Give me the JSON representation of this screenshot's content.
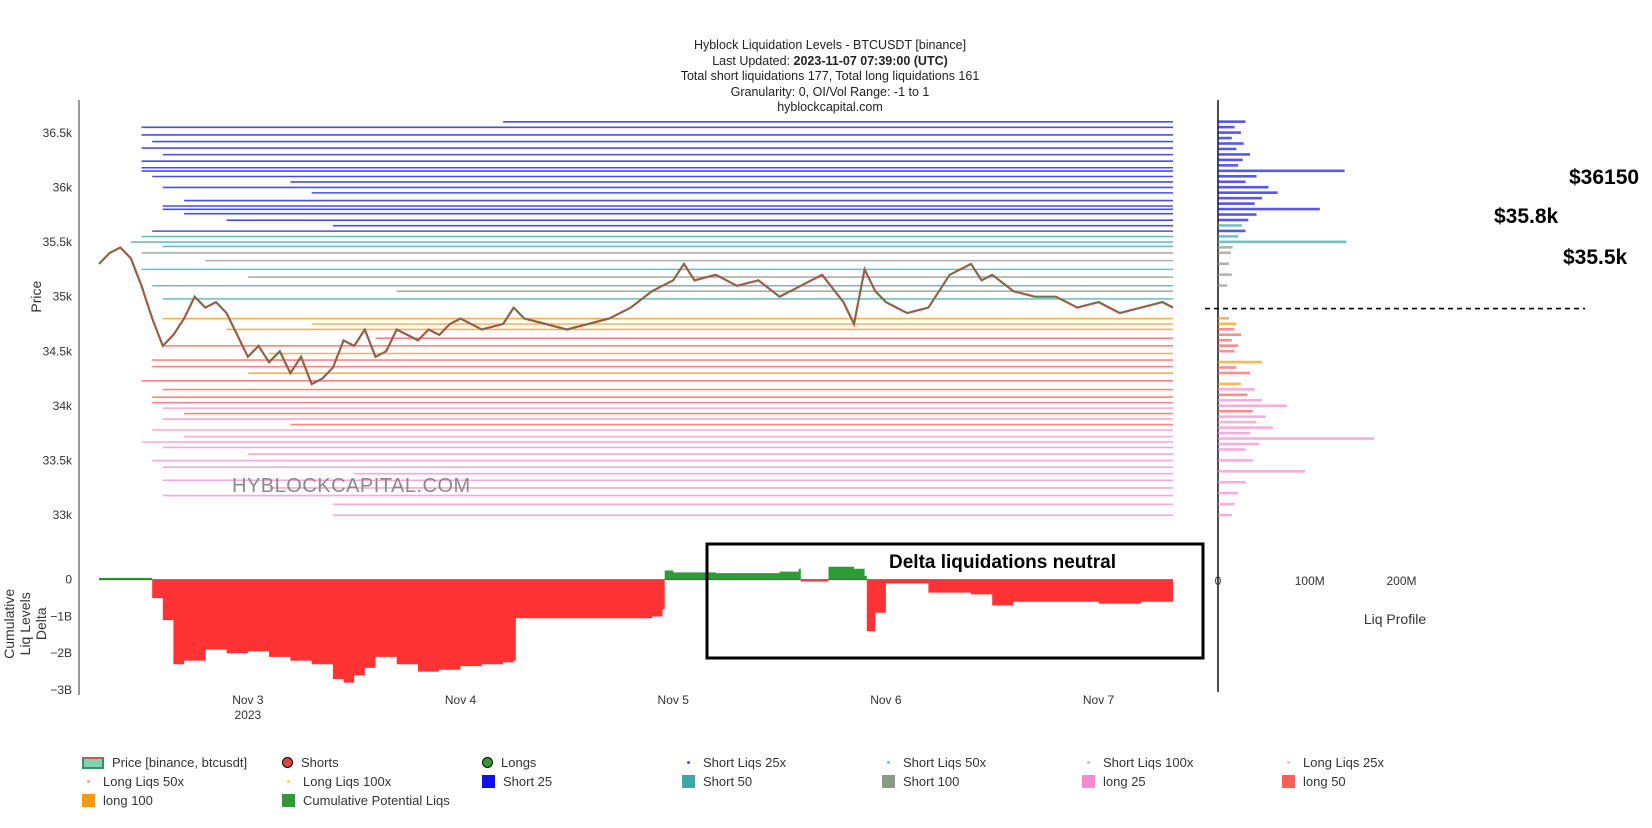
{
  "title": {
    "line1": "Hyblock Liquidation Levels - BTCUSDT [binance]",
    "line2_prefix": "Last Updated: ",
    "line2_value": "2023-11-07 07:39:00 (UTC)",
    "line3": "Total short liquidations 177, Total long liquidations 161",
    "line4": "Granularity: 0, OI/Vol Range: -1 to 1",
    "line5": "hyblockcapital.com"
  },
  "watermark": "HYBLOCKCAPITAL.COM",
  "annotations": {
    "level1": "$36150",
    "level2": "$35.8k",
    "level3": "$35.5k",
    "delta_note": "Delta liquidations neutral"
  },
  "colors": {
    "short25": "#1010e8",
    "short50": "#3aa8a8",
    "short100": "#8a9a84",
    "long25": "#f58ad0",
    "long50": "#ff5c5c",
    "long100": "#f39a10",
    "cum_positive": "#2e9c33",
    "cum_negative": "#ff3333",
    "price_up": "#2e8b57",
    "price_down": "#e0443e"
  },
  "chart_data": [
    {
      "type": "line",
      "name_series": "Price [binance, btcusdt]",
      "ylabel": "Price",
      "ylim": [
        32700,
        36800
      ],
      "yticks": [
        33000,
        33500,
        34000,
        34500,
        35000,
        35500,
        36000,
        36500
      ],
      "ytick_labels": [
        "33k",
        "33.5k",
        "34k",
        "34.5k",
        "35k",
        "35.5k",
        "36k",
        "36.5k"
      ],
      "xlim": [
        2.3,
        7.35
      ],
      "x_ticks": [
        3,
        4,
        5,
        6,
        7
      ],
      "x_tick_labels": [
        "Nov 3",
        "Nov 4",
        "Nov 5",
        "Nov 6",
        "Nov 7"
      ],
      "x_tick_sublabel": "2023",
      "price": {
        "x": [
          2.3,
          2.35,
          2.4,
          2.45,
          2.5,
          2.55,
          2.6,
          2.65,
          2.7,
          2.75,
          2.8,
          2.85,
          2.9,
          2.95,
          3.0,
          3.05,
          3.1,
          3.15,
          3.2,
          3.25,
          3.3,
          3.35,
          3.4,
          3.45,
          3.5,
          3.55,
          3.6,
          3.65,
          3.7,
          3.75,
          3.8,
          3.85,
          3.9,
          3.95,
          4.0,
          4.1,
          4.2,
          4.25,
          4.3,
          4.4,
          4.5,
          4.6,
          4.7,
          4.8,
          4.9,
          5.0,
          5.05,
          5.1,
          5.2,
          5.3,
          5.4,
          5.5,
          5.6,
          5.7,
          5.8,
          5.85,
          5.9,
          5.95,
          6.0,
          6.05,
          6.1,
          6.2,
          6.3,
          6.4,
          6.45,
          6.5,
          6.6,
          6.7,
          6.8,
          6.9,
          7.0,
          7.1,
          7.2,
          7.3,
          7.35
        ],
        "y": [
          35300,
          35400,
          35450,
          35350,
          35100,
          34800,
          34550,
          34650,
          34800,
          35000,
          34900,
          34950,
          34850,
          34650,
          34450,
          34550,
          34400,
          34500,
          34300,
          34450,
          34200,
          34250,
          34350,
          34600,
          34550,
          34700,
          34450,
          34500,
          34700,
          34650,
          34600,
          34700,
          34650,
          34750,
          34800,
          34700,
          34750,
          34900,
          34800,
          34750,
          34700,
          34750,
          34800,
          34900,
          35050,
          35150,
          35300,
          35150,
          35200,
          35100,
          35150,
          35000,
          35100,
          35200,
          34950,
          34750,
          35250,
          35050,
          34950,
          34900,
          34850,
          34900,
          35200,
          35300,
          35150,
          35200,
          35050,
          35000,
          35000,
          34900,
          34950,
          34850,
          34900,
          34950,
          34900
        ]
      },
      "liquidation_levels": {
        "short": [
          {
            "price": 36600,
            "start": 4.2,
            "lev": 25
          },
          {
            "price": 36550,
            "start": 2.5,
            "lev": 25
          },
          {
            "price": 36480,
            "start": 2.5,
            "lev": 25
          },
          {
            "price": 36420,
            "start": 2.55,
            "lev": 25
          },
          {
            "price": 36360,
            "start": 2.5,
            "lev": 25
          },
          {
            "price": 36300,
            "start": 2.6,
            "lev": 25
          },
          {
            "price": 36240,
            "start": 2.5,
            "lev": 25
          },
          {
            "price": 36180,
            "start": 2.5,
            "lev": 25
          },
          {
            "price": 36150,
            "start": 2.5,
            "lev": 25
          },
          {
            "price": 36100,
            "start": 2.55,
            "lev": 25
          },
          {
            "price": 36050,
            "start": 3.2,
            "lev": 25
          },
          {
            "price": 36000,
            "start": 2.6,
            "lev": 25
          },
          {
            "price": 35950,
            "start": 3.3,
            "lev": 25
          },
          {
            "price": 35880,
            "start": 2.7,
            "lev": 25
          },
          {
            "price": 35830,
            "start": 2.6,
            "lev": 25
          },
          {
            "price": 35800,
            "start": 2.6,
            "lev": 25
          },
          {
            "price": 35760,
            "start": 2.7,
            "lev": 25
          },
          {
            "price": 35700,
            "start": 2.9,
            "lev": 25
          },
          {
            "price": 35650,
            "start": 3.4,
            "lev": 25
          },
          {
            "price": 35600,
            "start": 2.55,
            "lev": 25
          },
          {
            "price": 35550,
            "start": 2.5,
            "lev": 50
          },
          {
            "price": 35500,
            "start": 2.45,
            "lev": 50
          },
          {
            "price": 35460,
            "start": 2.6,
            "lev": 50
          },
          {
            "price": 35400,
            "start": 2.5,
            "lev": 100
          },
          {
            "price": 35330,
            "start": 2.8,
            "lev": 100
          },
          {
            "price": 35250,
            "start": 2.5,
            "lev": 50
          },
          {
            "price": 35180,
            "start": 3.0,
            "lev": 100
          },
          {
            "price": 35100,
            "start": 2.55,
            "lev": 50
          },
          {
            "price": 35050,
            "start": 3.7,
            "lev": 100
          },
          {
            "price": 34980,
            "start": 2.6,
            "lev": 50
          }
        ],
        "long": [
          {
            "price": 34800,
            "start": 2.6,
            "lev": 100
          },
          {
            "price": 34750,
            "start": 3.3,
            "lev": 100
          },
          {
            "price": 34700,
            "start": 2.9,
            "lev": 100
          },
          {
            "price": 34620,
            "start": 3.6,
            "lev": 50
          },
          {
            "price": 34550,
            "start": 2.6,
            "lev": 50
          },
          {
            "price": 34480,
            "start": 3.1,
            "lev": 100
          },
          {
            "price": 34420,
            "start": 2.55,
            "lev": 50
          },
          {
            "price": 34360,
            "start": 2.55,
            "lev": 50
          },
          {
            "price": 34300,
            "start": 3.0,
            "lev": 100
          },
          {
            "price": 34230,
            "start": 2.5,
            "lev": 50
          },
          {
            "price": 34150,
            "start": 2.6,
            "lev": 50
          },
          {
            "price": 34080,
            "start": 2.55,
            "lev": 50
          },
          {
            "price": 34030,
            "start": 2.55,
            "lev": 50
          },
          {
            "price": 33980,
            "start": 2.6,
            "lev": 25
          },
          {
            "price": 33930,
            "start": 2.7,
            "lev": 50
          },
          {
            "price": 33880,
            "start": 2.6,
            "lev": 25
          },
          {
            "price": 33830,
            "start": 3.2,
            "lev": 50
          },
          {
            "price": 33780,
            "start": 2.55,
            "lev": 25
          },
          {
            "price": 33720,
            "start": 2.7,
            "lev": 25
          },
          {
            "price": 33670,
            "start": 2.5,
            "lev": 25
          },
          {
            "price": 33620,
            "start": 2.6,
            "lev": 25
          },
          {
            "price": 33560,
            "start": 3.0,
            "lev": 25
          },
          {
            "price": 33500,
            "start": 2.55,
            "lev": 25
          },
          {
            "price": 33440,
            "start": 2.6,
            "lev": 25
          },
          {
            "price": 33380,
            "start": 3.5,
            "lev": 25
          },
          {
            "price": 33320,
            "start": 2.6,
            "lev": 25
          },
          {
            "price": 33250,
            "start": 3.1,
            "lev": 25
          },
          {
            "price": 33180,
            "start": 2.6,
            "lev": 25
          },
          {
            "price": 33100,
            "start": 3.4,
            "lev": 25
          },
          {
            "price": 33000,
            "start": 3.4,
            "lev": 25
          }
        ]
      }
    },
    {
      "type": "area",
      "series_name": "Cumulative Potential Liqs",
      "ylabel": "Cumulative Liq Levels Delta",
      "ylim": [
        -3,
        0.4
      ],
      "yticks": [
        0,
        -1,
        -2,
        -3
      ],
      "ytick_labels": [
        "0",
        "−1B",
        "−2B",
        "−3B"
      ],
      "unit": "B",
      "x": [
        2.3,
        2.5,
        2.55,
        2.6,
        2.65,
        2.7,
        2.8,
        2.9,
        3.0,
        3.1,
        3.2,
        3.3,
        3.4,
        3.45,
        3.5,
        3.55,
        3.6,
        3.7,
        3.8,
        3.9,
        4.0,
        4.1,
        4.2,
        4.25,
        4.26,
        4.5,
        4.8,
        4.9,
        4.95,
        4.96,
        5.0,
        5.2,
        5.5,
        5.59,
        5.6,
        5.72,
        5.73,
        5.85,
        5.9,
        5.91,
        5.95,
        6.0,
        6.2,
        6.4,
        6.5,
        6.6,
        6.8,
        7.0,
        7.2,
        7.35
      ],
      "y": [
        0.05,
        0.05,
        -0.5,
        -1.1,
        -2.3,
        -2.2,
        -1.9,
        -2.0,
        -1.95,
        -2.1,
        -2.2,
        -2.3,
        -2.7,
        -2.8,
        -2.6,
        -2.4,
        -2.1,
        -2.3,
        -2.5,
        -2.45,
        -2.35,
        -2.3,
        -2.25,
        -2.2,
        -1.05,
        -1.05,
        -1.05,
        -1.0,
        -0.8,
        0.25,
        0.2,
        0.18,
        0.22,
        0.3,
        -0.05,
        -0.05,
        0.35,
        0.3,
        0.1,
        -1.4,
        -0.9,
        -0.1,
        -0.35,
        -0.4,
        -0.7,
        -0.6,
        -0.6,
        -0.65,
        -0.6,
        -0.7
      ]
    },
    {
      "type": "bar",
      "orientation": "horizontal",
      "xlabel": "Liq Profile",
      "xticks": [
        0,
        100,
        200
      ],
      "xtick_labels": [
        "0",
        "100M",
        "200M"
      ],
      "xlim": [
        0,
        340
      ],
      "bars": [
        {
          "price": 36600,
          "value": 30,
          "lev": 25
        },
        {
          "price": 36550,
          "value": 18,
          "lev": 25
        },
        {
          "price": 36500,
          "value": 25,
          "lev": 25
        },
        {
          "price": 36450,
          "value": 15,
          "lev": 25
        },
        {
          "price": 36400,
          "value": 28,
          "lev": 25
        },
        {
          "price": 36350,
          "value": 20,
          "lev": 25
        },
        {
          "price": 36300,
          "value": 35,
          "lev": 25
        },
        {
          "price": 36250,
          "value": 27,
          "lev": 25
        },
        {
          "price": 36200,
          "value": 22,
          "lev": 25
        },
        {
          "price": 36150,
          "value": 138,
          "lev": 25
        },
        {
          "price": 36100,
          "value": 42,
          "lev": 25
        },
        {
          "price": 36050,
          "value": 30,
          "lev": 25
        },
        {
          "price": 36000,
          "value": 55,
          "lev": 25
        },
        {
          "price": 35950,
          "value": 65,
          "lev": 25
        },
        {
          "price": 35900,
          "value": 48,
          "lev": 25
        },
        {
          "price": 35850,
          "value": 40,
          "lev": 25
        },
        {
          "price": 35800,
          "value": 111,
          "lev": 25
        },
        {
          "price": 35750,
          "value": 42,
          "lev": 25
        },
        {
          "price": 35700,
          "value": 33,
          "lev": 25
        },
        {
          "price": 35650,
          "value": 26,
          "lev": 50
        },
        {
          "price": 35600,
          "value": 30,
          "lev": 25
        },
        {
          "price": 35550,
          "value": 22,
          "lev": 50
        },
        {
          "price": 35500,
          "value": 140,
          "lev": 50
        },
        {
          "price": 35450,
          "value": 16,
          "lev": 100
        },
        {
          "price": 35400,
          "value": 14,
          "lev": 100
        },
        {
          "price": 35300,
          "value": 12,
          "lev": 100
        },
        {
          "price": 35200,
          "value": 15,
          "lev": 100
        },
        {
          "price": 35100,
          "value": 10,
          "lev": 100
        },
        {
          "price": 34800,
          "value": 12,
          "lev": 100
        },
        {
          "price": 34750,
          "value": 20,
          "lev": 100
        },
        {
          "price": 34700,
          "value": 18,
          "lev": 50
        },
        {
          "price": 34650,
          "value": 25,
          "lev": 50
        },
        {
          "price": 34600,
          "value": 15,
          "lev": 50
        },
        {
          "price": 34550,
          "value": 22,
          "lev": 50
        },
        {
          "price": 34500,
          "value": 18,
          "lev": 50
        },
        {
          "price": 34400,
          "value": 48,
          "lev": 100
        },
        {
          "price": 34350,
          "value": 20,
          "lev": 50
        },
        {
          "price": 34300,
          "value": 35,
          "lev": 50
        },
        {
          "price": 34200,
          "value": 25,
          "lev": 100
        },
        {
          "price": 34150,
          "value": 40,
          "lev": 25
        },
        {
          "price": 34100,
          "value": 32,
          "lev": 50
        },
        {
          "price": 34050,
          "value": 48,
          "lev": 25
        },
        {
          "price": 34000,
          "value": 75,
          "lev": 25
        },
        {
          "price": 33950,
          "value": 38,
          "lev": 50
        },
        {
          "price": 33900,
          "value": 52,
          "lev": 25
        },
        {
          "price": 33850,
          "value": 42,
          "lev": 25
        },
        {
          "price": 33800,
          "value": 60,
          "lev": 25
        },
        {
          "price": 33750,
          "value": 35,
          "lev": 25
        },
        {
          "price": 33700,
          "value": 170,
          "lev": 25
        },
        {
          "price": 33650,
          "value": 45,
          "lev": 25
        },
        {
          "price": 33600,
          "value": 30,
          "lev": 25
        },
        {
          "price": 33500,
          "value": 38,
          "lev": 25
        },
        {
          "price": 33400,
          "value": 95,
          "lev": 25
        },
        {
          "price": 33300,
          "value": 30,
          "lev": 25
        },
        {
          "price": 33200,
          "value": 22,
          "lev": 25
        },
        {
          "price": 33100,
          "value": 18,
          "lev": 25
        },
        {
          "price": 33000,
          "value": 15,
          "lev": 25
        }
      ]
    }
  ],
  "legend": [
    {
      "label": "Price [binance, btcusdt]",
      "kind": "price",
      "color": "#3a8f6a"
    },
    {
      "label": "Shorts",
      "kind": "dot",
      "color": "#e0443e"
    },
    {
      "label": "Longs",
      "kind": "dot",
      "color": "#2e9c33"
    },
    {
      "label": "Short Liqs 25x",
      "kind": "tiny",
      "color": "#4a4af0"
    },
    {
      "label": "Short Liqs 50x",
      "kind": "tiny",
      "color": "#66c2c2"
    },
    {
      "label": "Short Liqs 100x",
      "kind": "tiny",
      "color": "#bcc4b8"
    },
    {
      "label": "Long Liqs 25x",
      "kind": "tiny",
      "color": "#f7b3e0"
    },
    {
      "label": "Long Liqs 50x",
      "kind": "tiny",
      "color": "#ff9a9a"
    },
    {
      "label": "Long Liqs 100x",
      "kind": "tiny",
      "color": "#f7c77a"
    },
    {
      "label": "Short 25",
      "kind": "box",
      "color": "#1010e8"
    },
    {
      "label": "Short 50",
      "kind": "box",
      "color": "#3aa8a8"
    },
    {
      "label": "Short 100",
      "kind": "box",
      "color": "#8a9a84"
    },
    {
      "label": "long 25",
      "kind": "box",
      "color": "#f58ad0"
    },
    {
      "label": "long 50",
      "kind": "box",
      "color": "#ff5c5c"
    },
    {
      "label": "long 100",
      "kind": "box",
      "color": "#f39a10"
    },
    {
      "label": "Cumulative Potential Liqs",
      "kind": "box",
      "color": "#2e9c33"
    }
  ]
}
